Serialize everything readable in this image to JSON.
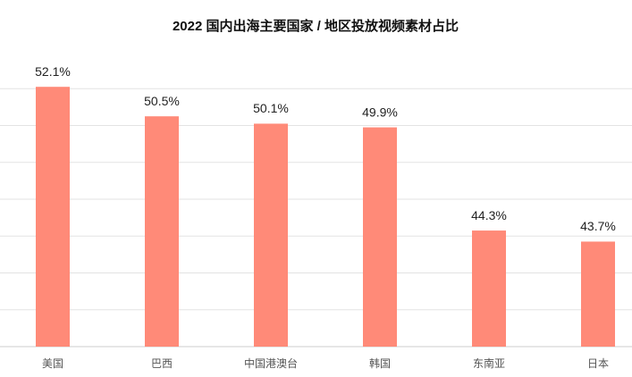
{
  "chart_data": {
    "type": "bar",
    "title": "2022 国内出海主要国家 / 地区投放视频素材占比",
    "categories": [
      "美国",
      "巴西",
      "中国港澳台",
      "韩国",
      "东南亚",
      "日本"
    ],
    "values": [
      52.1,
      50.5,
      50.1,
      49.9,
      44.3,
      43.7
    ],
    "value_labels": [
      "52.1%",
      "50.5%",
      "50.1%",
      "49.9%",
      "44.3%",
      "43.7%"
    ],
    "color": "#ff8a78",
    "ylim": [
      38,
      54
    ],
    "yticks": [
      38,
      40,
      42,
      44,
      46,
      48,
      50,
      52
    ],
    "grid": true
  }
}
